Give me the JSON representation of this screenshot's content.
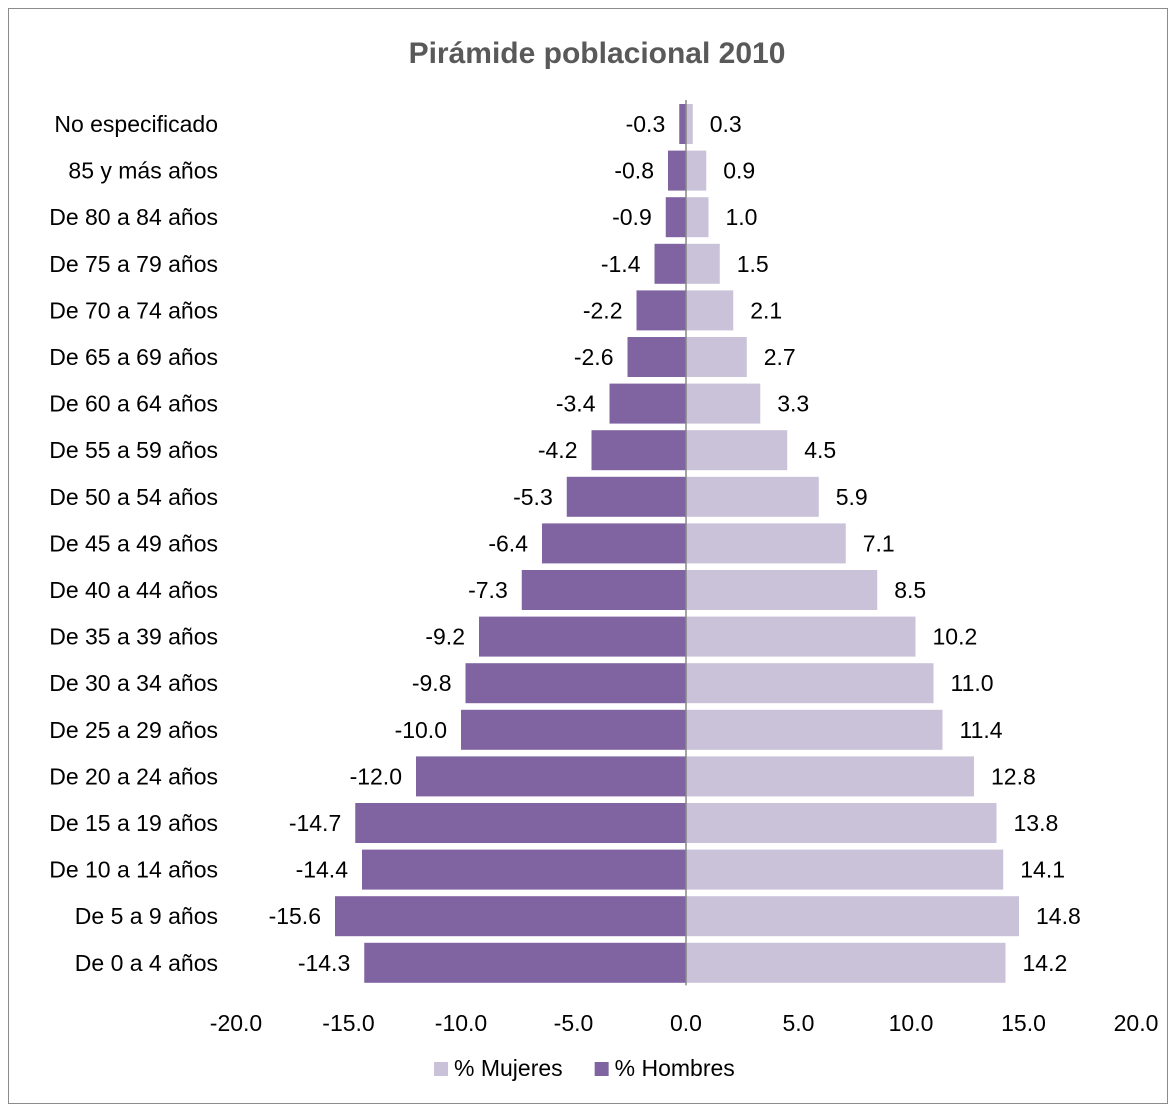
{
  "chart_data": {
    "type": "bar",
    "orientation": "horizontal",
    "title": "Pirámide poblacional 2010",
    "categories": [
      "No especificado",
      "85 y más años",
      "De 80 a 84 años",
      "De 75 a 79 años",
      "De 70 a 74 años",
      "De 65 a 69 años",
      "De 60 a 64 años",
      "De 55 a 59 años",
      "De 50 a 54 años",
      "De 45 a 49 años",
      "De 40 a 44 años",
      "De 35 a 39 años",
      "De 30 a 34 años",
      "De 25 a 29 años",
      "De 20 a 24 años",
      "De 15 a 19 años",
      "De 10 a 14 años",
      "De 5 a 9 años",
      "De 0 a 4 años"
    ],
    "series": [
      {
        "name": "% Mujeres",
        "color": "#c9c2d8",
        "values": [
          0.3,
          0.9,
          1.0,
          1.5,
          2.1,
          2.7,
          3.3,
          4.5,
          5.9,
          7.1,
          8.5,
          10.2,
          11.0,
          11.4,
          12.8,
          13.8,
          14.1,
          14.8,
          14.2
        ]
      },
      {
        "name": "% Hombres",
        "color": "#8064a2",
        "values": [
          -0.3,
          -0.8,
          -0.9,
          -1.4,
          -2.2,
          -2.6,
          -3.4,
          -4.2,
          -5.3,
          -6.4,
          -7.3,
          -9.2,
          -9.8,
          -10.0,
          -12.0,
          -14.7,
          -14.4,
          -15.6,
          -14.3
        ]
      }
    ],
    "xlim": [
      -20,
      20
    ],
    "xticks": [
      "-20.0",
      "-15.0",
      "-10.0",
      "-5.0",
      "0.0",
      "5.0",
      "10.0",
      "15.0",
      "20.0"
    ],
    "value_format_decimals": 1,
    "legend": {
      "position": "bottom",
      "order": [
        "% Mujeres",
        "% Hombres"
      ]
    },
    "grid": false
  }
}
